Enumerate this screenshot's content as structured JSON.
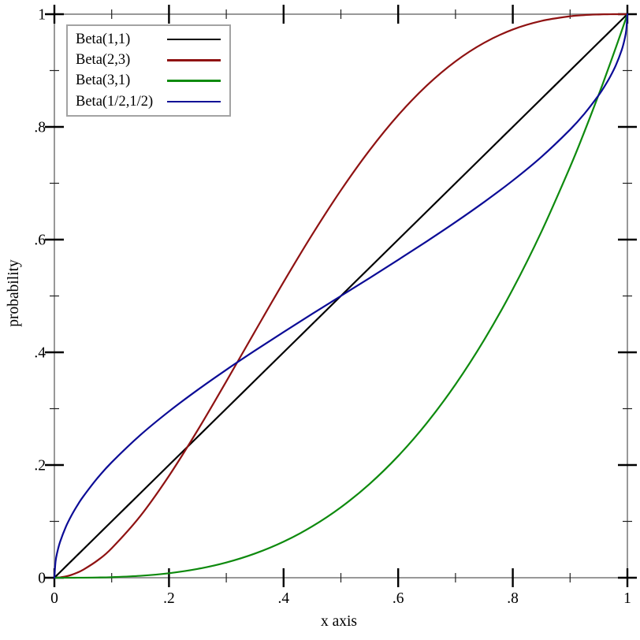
{
  "figure": {
    "background_color": "#ffffff",
    "frame_color": "#989898",
    "major_tick_color": "#000000",
    "minor_tick_color": "#202020",
    "text_color": "#000000",
    "legend_border_color": "#a3a3a3",
    "legend_background": "#ffffff"
  },
  "chart_data": {
    "type": "line",
    "title": "",
    "xlabel": "x axis",
    "ylabel": "probability",
    "xlim": [
      0,
      1
    ],
    "ylim": [
      0,
      1
    ],
    "grid": false,
    "legend_position": "top-left",
    "x_ticks": {
      "major_values": [
        0,
        0.2,
        0.4,
        0.6,
        0.8,
        1
      ],
      "major_labels": [
        "0",
        ".2",
        ".4",
        ".6",
        ".8",
        "1"
      ],
      "minor_values": [
        0.1,
        0.3,
        0.5,
        0.7,
        0.9
      ]
    },
    "y_ticks": {
      "major_values": [
        0,
        0.2,
        0.4,
        0.6,
        0.8,
        1
      ],
      "major_labels": [
        "0",
        ".2",
        ".4",
        ".6",
        ".8",
        "1"
      ],
      "minor_values": [
        0.1,
        0.3,
        0.5,
        0.7,
        0.9
      ]
    },
    "x": [
      0,
      0.002,
      0.005,
      0.01,
      0.02,
      0.03,
      0.04,
      0.05,
      0.075,
      0.1,
      0.15,
      0.2,
      0.25,
      0.3,
      0.35,
      0.4,
      0.45,
      0.5,
      0.55,
      0.6,
      0.65,
      0.7,
      0.75,
      0.8,
      0.85,
      0.9,
      0.925,
      0.95,
      0.96,
      0.97,
      0.98,
      0.99,
      0.995,
      0.998,
      1
    ],
    "series": [
      {
        "name": "Beta(1,1)",
        "color": "#000000",
        "values": [
          0,
          0.002,
          0.005,
          0.01,
          0.02,
          0.03,
          0.04,
          0.05,
          0.075,
          0.1,
          0.15,
          0.2,
          0.25,
          0.3,
          0.35,
          0.4,
          0.45,
          0.5,
          0.55,
          0.6,
          0.65,
          0.7,
          0.75,
          0.8,
          0.85,
          0.9,
          0.925,
          0.95,
          0.96,
          0.97,
          0.98,
          0.99,
          0.995,
          0.998,
          1
        ]
      },
      {
        "name": "Beta(2,3)",
        "color": "#8f1212",
        "values": [
          0,
          0,
          0.0001,
          0.0006,
          0.0023,
          0.0052,
          0.0091,
          0.014,
          0.0305,
          0.0523,
          0.1095,
          0.1808,
          0.2617,
          0.3483,
          0.437,
          0.5248,
          0.609,
          0.6875,
          0.7585,
          0.8208,
          0.8735,
          0.9163,
          0.9492,
          0.9728,
          0.988,
          0.9963,
          0.9984,
          0.9995,
          0.9998,
          0.9999,
          1,
          1,
          1,
          1,
          1
        ]
      },
      {
        "name": "Beta(3,1)",
        "color": "#0e8a0e",
        "values": [
          0,
          0,
          0,
          0,
          0,
          0,
          0.0001,
          0.0001,
          0.0004,
          0.001,
          0.0034,
          0.008,
          0.0156,
          0.027,
          0.0429,
          0.064,
          0.0911,
          0.125,
          0.1664,
          0.216,
          0.2746,
          0.343,
          0.4219,
          0.512,
          0.6141,
          0.729,
          0.7915,
          0.8574,
          0.8847,
          0.9127,
          0.9412,
          0.9703,
          0.9851,
          0.994,
          1
        ]
      },
      {
        "name": "Beta(1/2,1/2)",
        "color": "#0c0c96",
        "values": [
          0,
          0.0285,
          0.0451,
          0.0638,
          0.0903,
          0.1108,
          0.1282,
          0.1436,
          0.1766,
          0.2048,
          0.2532,
          0.2952,
          0.3333,
          0.369,
          0.403,
          0.4359,
          0.4682,
          0.5,
          0.5318,
          0.5641,
          0.597,
          0.631,
          0.6667,
          0.7048,
          0.7468,
          0.7952,
          0.8234,
          0.8564,
          0.8718,
          0.8892,
          0.9097,
          0.9362,
          0.9549,
          0.9715,
          1
        ]
      }
    ]
  }
}
